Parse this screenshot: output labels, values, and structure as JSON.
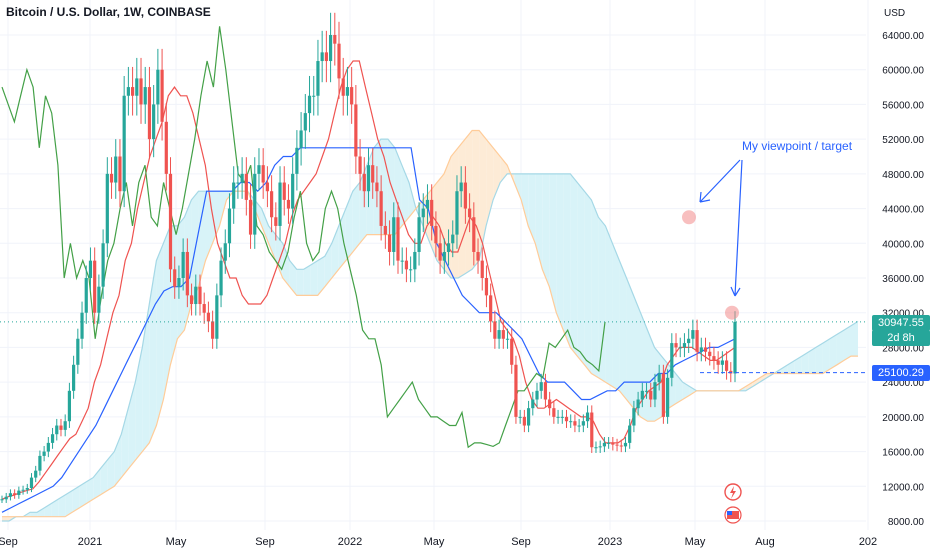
{
  "header": {
    "title": "Bitcoin / U.S. Dollar, 1W, COINBASE"
  },
  "price_axis": {
    "currency": "USD",
    "ticks": [
      "64000.00",
      "60000.00",
      "56000.00",
      "52000.00",
      "48000.00",
      "44000.00",
      "40000.00",
      "36000.00",
      "32000.00",
      "28000.00",
      "24000.00",
      "20000.00",
      "16000.00",
      "12000.00",
      "8000.00"
    ]
  },
  "time_axis": {
    "ticks": [
      "Sep",
      "2021",
      "May",
      "Sep",
      "2022",
      "May",
      "Sep",
      "2023",
      "May",
      "Aug",
      "202"
    ]
  },
  "price_labels": {
    "last_price": "30947.55",
    "countdown": "2d 8h",
    "ref_price": "25100.29"
  },
  "annotation": {
    "text": "My viewpoint / target"
  },
  "colors": {
    "up": "#26a69a",
    "down": "#ef5350",
    "tenkan": "#ef5350",
    "kijun": "#2962ff",
    "chikou": "#43a047",
    "senkou_a": "#a5d8e6",
    "senkou_b": "#ffcc99",
    "kumo_bull": "#d8f3f8",
    "kumo_bear": "#fdebd6",
    "price_tag": "#26a69a",
    "ref_tag": "#2962ff",
    "note": "#2962ff",
    "marker": "#f28b8b"
  },
  "icons": {
    "flash": "lightning-icon",
    "flag": "us-flag-icon"
  },
  "chart_data": {
    "type": "candlestick",
    "title": "Bitcoin / U.S. Dollar, 1W, COINBASE",
    "xlabel": "",
    "ylabel": "USD",
    "ylim": [
      7000,
      66500
    ],
    "x_ticks": [
      "Sep",
      "2021",
      "May",
      "Sep",
      "2022",
      "May",
      "Sep",
      "2023",
      "May",
      "Aug",
      "202"
    ],
    "closes": [
      10500,
      10800,
      11200,
      11000,
      11500,
      11600,
      11800,
      13000,
      13800,
      15500,
      16000,
      17000,
      18000,
      19000,
      18500,
      19500,
      23000,
      26000,
      29000,
      32000,
      36000,
      38000,
      32000,
      35000,
      40000,
      48000,
      47000,
      50000,
      46000,
      57000,
      58000,
      57000,
      59000,
      56000,
      58000,
      52000,
      56000,
      60000,
      54000,
      48000,
      37000,
      35000,
      36000,
      39000,
      34000,
      33000,
      35000,
      33000,
      32000,
      31000,
      29000,
      34000,
      38000,
      40000,
      44000,
      47000,
      47000,
      48000,
      45000,
      41000,
      48000,
      49000,
      47000,
      46000,
      43000,
      42000,
      47000,
      45000,
      44000,
      48000,
      51000,
      53000,
      55000,
      57000,
      57000,
      61000,
      62000,
      61000,
      64000,
      63000,
      59000,
      57000,
      58000,
      56000,
      50000,
      48000,
      46000,
      49000,
      47000,
      46000,
      42000,
      41000,
      39000,
      43000,
      38000,
      38000,
      37000,
      37000,
      39000,
      43000,
      44000,
      45000,
      42000,
      40000,
      38000,
      39000,
      40000,
      41000,
      46000,
      47000,
      44000,
      43000,
      39000,
      38000,
      36000,
      34000,
      31000,
      29000,
      30000,
      29000,
      29000,
      26000,
      20000,
      20000,
      19000,
      21000,
      22000,
      23000,
      24000,
      22000,
      21000,
      20000,
      20000,
      20000,
      19500,
      19500,
      19000,
      19000,
      19500,
      20500,
      16500,
      16500,
      16600,
      17000,
      17000,
      16800,
      16700,
      16600,
      17000,
      19000,
      21000,
      22000,
      23000,
      23000,
      22000,
      24000,
      25000,
      20000,
      24500,
      28500,
      28000,
      28000,
      28500,
      29000,
      30000,
      27500,
      28000,
      27500,
      27000,
      26500,
      26000,
      26500,
      25300,
      25000,
      30947.55
    ],
    "series": [
      {
        "name": "",
        "key": "tenkan",
        "values": [
          10500,
          10800,
          11000,
          11300,
          11500,
          11700,
          12500,
          13500,
          14500,
          15500,
          16500,
          17500,
          18000,
          19500,
          21000,
          24000,
          26000,
          29000,
          32000,
          34000,
          38000,
          40000,
          44000,
          47000,
          50000,
          52000,
          54000,
          57000,
          58000,
          57000,
          57000,
          55000,
          52000,
          49000,
          44000,
          40000,
          38000,
          36000,
          36000,
          34000,
          33000,
          33000,
          33000,
          34000,
          36000,
          38000,
          40000,
          43000,
          45000,
          46000,
          47000,
          48000,
          50000,
          52000,
          55000,
          58000,
          60000,
          61000,
          61000,
          58000,
          55000,
          52000,
          50000,
          47000,
          45000,
          43000,
          41000,
          40000,
          40000,
          42000,
          43000,
          42000,
          40000,
          39000,
          39000,
          41000,
          43000,
          42000,
          40000,
          37000,
          34000,
          31000,
          30000,
          29000,
          27000,
          24000,
          22000,
          21000,
          21000,
          21500,
          22000,
          21500,
          21000,
          20500,
          20000,
          20000,
          19500,
          18000,
          17000,
          17000,
          17000,
          17500,
          19000,
          21000,
          22000,
          23000,
          23500,
          24000,
          26000,
          27000,
          28000,
          28000,
          28000,
          27500,
          27000,
          26500,
          26500,
          27000,
          27500,
          28000
        ]
      },
      {
        "name": "",
        "key": "kijun",
        "values": [
          9000,
          9500,
          10000,
          10500,
          11000,
          11500,
          12000,
          13000,
          14500,
          16000,
          17500,
          19000,
          21000,
          23000,
          25000,
          27000,
          29000,
          31000,
          33000,
          34500,
          35000,
          35000,
          36000,
          41000,
          46000,
          46000,
          46000,
          46000,
          47000,
          47000,
          46000,
          47000,
          49000,
          50000,
          50000,
          51000,
          51000,
          51000,
          51000,
          51000,
          51000,
          51000,
          51000,
          51000,
          51000,
          51000,
          51000,
          51000,
          51000,
          45000,
          44000,
          40000,
          38000,
          36000,
          34000,
          33000,
          32000,
          32000,
          32000,
          31000,
          30000,
          29000,
          27000,
          25000,
          24000,
          24000,
          24000,
          23000,
          22000,
          22000,
          22500,
          23000,
          23000,
          24000,
          24000,
          24000,
          24000,
          25000,
          25000,
          26000,
          26500,
          27000,
          27500,
          28000,
          28000,
          28500,
          29000
        ]
      },
      {
        "name": "",
        "key": "chikou",
        "values": [
          58000,
          56000,
          54000,
          57000,
          60000,
          58000,
          51000,
          57000,
          55000,
          49000,
          36000,
          40000,
          36000,
          38000,
          36000,
          29000,
          34000,
          38000,
          40000,
          44000,
          47000,
          42000,
          47000,
          49000,
          43000,
          42000,
          47000,
          44000,
          41000,
          44000,
          48000,
          52000,
          57000,
          61000,
          58000,
          65000,
          60000,
          54000,
          48000,
          47000,
          49000,
          42000,
          41000,
          39000,
          38000,
          37000,
          39000,
          43000,
          46000,
          40000,
          38000,
          39000,
          44000,
          46000,
          44000,
          40000,
          37000,
          34000,
          30000,
          29000,
          29000,
          26000,
          20000,
          21000,
          22000,
          23000,
          24000,
          22000,
          21000,
          20000,
          20000,
          19500,
          19000,
          19000,
          20500,
          16500,
          17000,
          17000,
          16800,
          16600,
          17000,
          19000,
          21000,
          23000,
          23000,
          24000,
          25000,
          24500,
          28500,
          28000,
          29000,
          30000,
          28000,
          27500,
          26500,
          26000,
          25300,
          30947
        ]
      },
      {
        "name": "",
        "key": "senkou_a",
        "values": [
          8000,
          8000,
          8500,
          8500,
          9000,
          9000,
          9500,
          10000,
          10500,
          11000,
          11500,
          12000,
          12500,
          13000,
          14000,
          15000,
          16000,
          18000,
          21000,
          24000,
          28000,
          33000,
          38000,
          40000,
          42000,
          42000,
          43000,
          45000,
          46000,
          46000,
          46000,
          46000,
          46000,
          46000,
          46000,
          46000,
          45000,
          44000,
          42000,
          41000,
          40000,
          38000,
          37000,
          37000,
          37500,
          38000,
          38500,
          40000,
          42000,
          44000,
          46000,
          47000,
          49000,
          51000,
          52000,
          52000,
          51000,
          49000,
          47000,
          44000,
          42000,
          40000,
          38000,
          37000,
          36000,
          36000,
          36500,
          37000,
          38000,
          42000,
          45000,
          47000,
          48000,
          48000,
          48000,
          48000,
          48000,
          48000,
          48000,
          48000,
          48000,
          48000,
          47000,
          46000,
          45000,
          43000,
          42000,
          40000,
          38000,
          36000,
          34000,
          32000,
          30000,
          28000,
          27000,
          26000,
          25000,
          24000,
          23500,
          23000,
          23000,
          23000,
          23000,
          23000,
          23000,
          23000,
          23000,
          23500,
          24000,
          24500,
          25000,
          25500,
          26000,
          26500,
          27000,
          27500,
          28000,
          28500,
          29000,
          29500,
          30000,
          30500,
          31000,
          31500,
          31500,
          31500,
          31500,
          31000,
          30000,
          28000,
          26000,
          25000,
          24500,
          24500
        ]
      },
      {
        "name": "",
        "key": "senkou_b",
        "values": [
          8500,
          8500,
          8500,
          8500,
          8500,
          8500,
          8500,
          8500,
          8500,
          8500,
          9000,
          9500,
          10000,
          10500,
          11000,
          11500,
          12000,
          13000,
          14000,
          15000,
          16000,
          17000,
          19000,
          22000,
          26000,
          29000,
          30000,
          33000,
          35000,
          38000,
          40000,
          42000,
          45000,
          46000,
          46000,
          46000,
          44000,
          42000,
          40000,
          38000,
          36000,
          35000,
          34000,
          34000,
          34000,
          34000,
          35000,
          36000,
          37000,
          38000,
          39000,
          40000,
          41000,
          41000,
          41000,
          41000,
          41000,
          42000,
          43000,
          44000,
          45000,
          46000,
          47000,
          48000,
          50000,
          51000,
          52000,
          53000,
          53000,
          52000,
          51000,
          50000,
          49000,
          47000,
          45000,
          42000,
          40000,
          37000,
          35000,
          32000,
          30000,
          28000,
          27000,
          26000,
          25000,
          24500,
          24000,
          23500,
          23000,
          22000,
          21000,
          20000,
          19500,
          19500,
          20000,
          21000,
          21500,
          22000,
          22500,
          23000,
          23000,
          23000,
          23000,
          23000,
          23000,
          23000,
          23500,
          24000,
          24500,
          25000,
          25000,
          25000,
          25000,
          25000,
          25000,
          25000,
          25000,
          25000,
          25500,
          26000,
          26500,
          27000,
          27000
        ]
      }
    ],
    "annotations": [
      "My viewpoint / target"
    ],
    "markers": [
      {
        "x": "between May and Aug 2023",
        "y": 43000
      },
      {
        "x": "current week",
        "y": 32000
      }
    ],
    "current_price": 30947.55,
    "reference_line": 25100.29,
    "grid": true,
    "legend": "none"
  }
}
